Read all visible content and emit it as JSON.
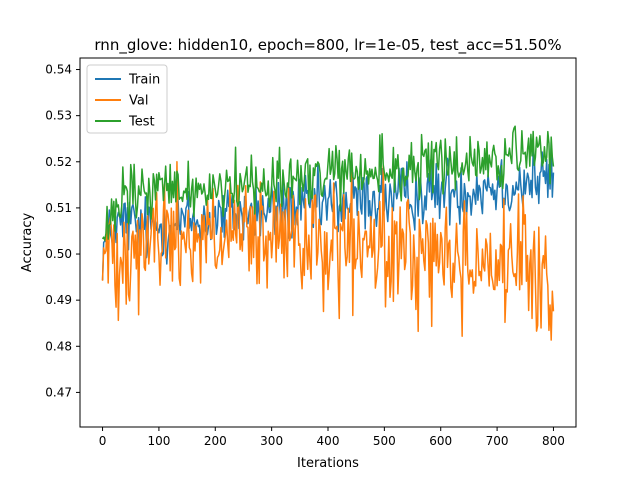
{
  "chart_data": {
    "type": "line",
    "title": "rnn_glove: hidden10, epoch=800, lr=1e-05, test_acc=51.50%",
    "xlabel": "Iterations",
    "ylabel": "Accuracy",
    "xlim": [
      -40,
      840
    ],
    "ylim": [
      0.4625,
      0.5425
    ],
    "xticks": [
      0,
      100,
      200,
      300,
      400,
      500,
      600,
      700,
      800
    ],
    "yticks": [
      0.47,
      0.48,
      0.49,
      0.5,
      0.51,
      0.52,
      0.53,
      0.54
    ],
    "ytick_labels": [
      "0.47",
      "0.48",
      "0.49",
      "0.50",
      "0.51",
      "0.52",
      "0.53",
      "0.54"
    ],
    "legend_position": "top-left",
    "grid": false,
    "series": [
      {
        "name": "Train",
        "color": "#1f77b4",
        "x": [
          0,
          20,
          40,
          60,
          80,
          100,
          120,
          140,
          160,
          180,
          200,
          220,
          240,
          260,
          280,
          300,
          320,
          340,
          360,
          380,
          400,
          420,
          440,
          460,
          480,
          500,
          520,
          540,
          560,
          580,
          600,
          620,
          640,
          660,
          680,
          700,
          720,
          740,
          760,
          780,
          800
        ],
        "y": [
          0.501,
          0.505,
          0.507,
          0.506,
          0.505,
          0.506,
          0.506,
          0.507,
          0.507,
          0.507,
          0.508,
          0.508,
          0.509,
          0.509,
          0.509,
          0.509,
          0.51,
          0.51,
          0.51,
          0.51,
          0.511,
          0.511,
          0.511,
          0.512,
          0.512,
          0.512,
          0.512,
          0.513,
          0.513,
          0.513,
          0.514,
          0.514,
          0.514,
          0.514,
          0.515,
          0.515,
          0.515,
          0.515,
          0.516,
          0.516,
          0.517
        ],
        "noise": 0.012
      },
      {
        "name": "Val",
        "color": "#ff7f0e",
        "x": [
          0,
          20,
          40,
          60,
          80,
          100,
          120,
          140,
          160,
          180,
          200,
          220,
          240,
          260,
          280,
          300,
          320,
          340,
          360,
          380,
          400,
          420,
          440,
          460,
          480,
          500,
          520,
          540,
          560,
          580,
          600,
          620,
          640,
          660,
          680,
          700,
          720,
          740,
          760,
          780,
          800
        ],
        "y": [
          0.499,
          0.501,
          0.502,
          0.503,
          0.503,
          0.504,
          0.504,
          0.504,
          0.504,
          0.504,
          0.503,
          0.503,
          0.503,
          0.503,
          0.503,
          0.502,
          0.502,
          0.502,
          0.502,
          0.502,
          0.502,
          0.501,
          0.501,
          0.501,
          0.501,
          0.501,
          0.5,
          0.5,
          0.5,
          0.5,
          0.5,
          0.499,
          0.499,
          0.499,
          0.499,
          0.498,
          0.498,
          0.497,
          0.496,
          0.494,
          0.49
        ],
        "noise": 0.022
      },
      {
        "name": "Test",
        "color": "#2ca02c",
        "x": [
          0,
          20,
          40,
          60,
          80,
          100,
          120,
          140,
          160,
          180,
          200,
          220,
          240,
          260,
          280,
          300,
          320,
          340,
          360,
          380,
          400,
          420,
          440,
          460,
          480,
          500,
          520,
          540,
          560,
          580,
          600,
          620,
          640,
          660,
          680,
          700,
          720,
          740,
          760,
          780,
          800
        ],
        "y": [
          0.502,
          0.508,
          0.512,
          0.513,
          0.513,
          0.514,
          0.514,
          0.514,
          0.514,
          0.514,
          0.515,
          0.515,
          0.515,
          0.515,
          0.516,
          0.516,
          0.516,
          0.516,
          0.516,
          0.517,
          0.517,
          0.517,
          0.517,
          0.517,
          0.518,
          0.518,
          0.518,
          0.518,
          0.519,
          0.519,
          0.519,
          0.519,
          0.52,
          0.52,
          0.52,
          0.52,
          0.521,
          0.521,
          0.521,
          0.521,
          0.522
        ],
        "noise": 0.011
      }
    ]
  }
}
